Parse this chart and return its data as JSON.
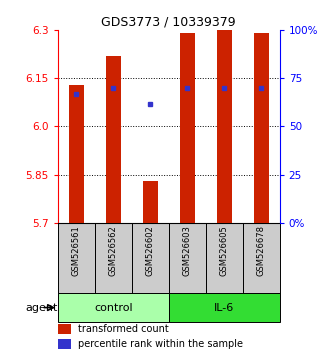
{
  "title": "GDS3773 / 10339379",
  "samples": [
    "GSM526561",
    "GSM526562",
    "GSM526602",
    "GSM526603",
    "GSM526605",
    "GSM526678"
  ],
  "bar_bottoms": [
    5.7,
    5.7,
    5.7,
    5.7,
    5.7,
    5.7
  ],
  "bar_tops": [
    6.13,
    6.22,
    5.83,
    6.29,
    6.3,
    6.29
  ],
  "percentile_values": [
    6.1,
    6.12,
    6.07,
    6.12,
    6.12,
    6.12
  ],
  "ylim_min": 5.7,
  "ylim_max": 6.3,
  "yticks": [
    5.7,
    5.85,
    6.0,
    6.15,
    6.3
  ],
  "right_ytick_vals": [
    0,
    25,
    50,
    75,
    100
  ],
  "right_ytick_labels": [
    "0%",
    "25",
    "50",
    "75",
    "100%"
  ],
  "bar_color": "#cc2200",
  "blue_color": "#3333cc",
  "groups": [
    {
      "label": "control",
      "n": 3,
      "color": "#aaffaa"
    },
    {
      "label": "IL-6",
      "n": 3,
      "color": "#33dd33"
    }
  ],
  "agent_label": "agent",
  "legend_bar_label": "transformed count",
  "legend_blue_label": "percentile rank within the sample",
  "bar_width": 0.4,
  "sample_box_color": "#cccccc",
  "grid_yticks": [
    5.85,
    6.0,
    6.15
  ]
}
